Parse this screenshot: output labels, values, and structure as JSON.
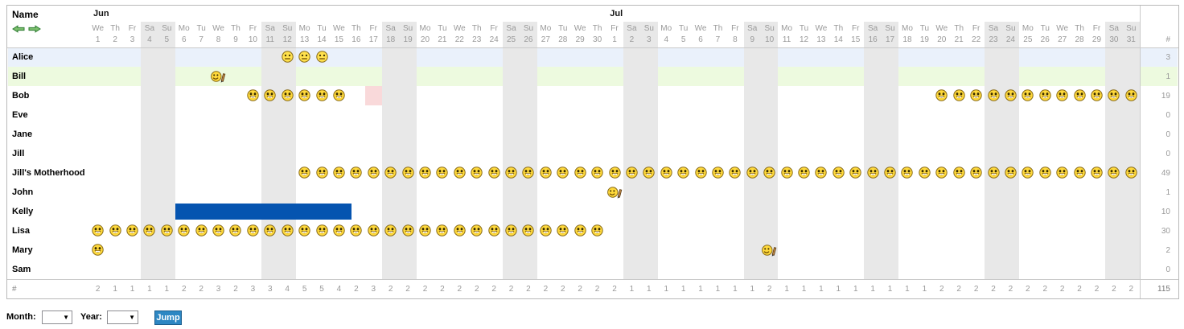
{
  "table": {
    "name_header": "Name",
    "count_header": "#",
    "footer_label": "#",
    "total": 115,
    "dow_cycle": [
      "Mo",
      "Tu",
      "We",
      "Th",
      "Fr",
      "Sa",
      "Su"
    ],
    "weekend_dows": [
      "Sa",
      "Su"
    ],
    "months": [
      {
        "label": "Jun",
        "days": 30,
        "first_dow": "We"
      },
      {
        "label": "Jul",
        "days": 31,
        "first_dow": "Fr"
      }
    ],
    "rows": [
      {
        "name": "Alice",
        "count": 3,
        "bg": "#eaf1fb",
        "marks": [
          {
            "icon": "smiley-neutral",
            "month": "Jun",
            "from": 12,
            "to": 14
          }
        ]
      },
      {
        "name": "Bill",
        "count": 1,
        "bg": "#edfadf",
        "marks": [
          {
            "icon": "smiley-pen",
            "month": "Jun",
            "from": 8,
            "to": 8
          }
        ]
      },
      {
        "name": "Bob",
        "count": 19,
        "bg": "",
        "marks": [
          {
            "icon": "smiley-grin",
            "month": "Jun",
            "from": 10,
            "to": 15
          },
          {
            "cell": "absence",
            "month": "Jun",
            "from": 17,
            "to": 17
          },
          {
            "icon": "smiley-grin",
            "month": "Jul",
            "from": 20,
            "to": 31
          }
        ]
      },
      {
        "name": "Eve",
        "count": 0,
        "bg": "",
        "marks": []
      },
      {
        "name": "Jane",
        "count": 0,
        "bg": "",
        "marks": []
      },
      {
        "name": "Jill",
        "count": 0,
        "bg": "",
        "marks": []
      },
      {
        "name": "Jill's Motherhood",
        "count": 49,
        "bg": "",
        "marks": [
          {
            "icon": "smiley-grin",
            "month": "Jun",
            "from": 13,
            "to": 30
          },
          {
            "icon": "smiley-grin",
            "month": "Jul",
            "from": 1,
            "to": 31
          }
        ]
      },
      {
        "name": "John",
        "count": 1,
        "bg": "",
        "marks": [
          {
            "icon": "smiley-pen",
            "month": "Jul",
            "from": 1,
            "to": 1
          }
        ]
      },
      {
        "name": "Kelly",
        "count": 10,
        "bg": "",
        "marks": [
          {
            "cell": "bar",
            "month": "Jun",
            "from": 6,
            "to": 15
          }
        ]
      },
      {
        "name": "Lisa",
        "count": 30,
        "bg": "",
        "marks": [
          {
            "icon": "smiley-grin",
            "month": "Jun",
            "from": 1,
            "to": 30
          }
        ]
      },
      {
        "name": "Mary",
        "count": 2,
        "bg": "",
        "marks": [
          {
            "icon": "smiley-grin",
            "month": "Jun",
            "from": 1,
            "to": 1
          },
          {
            "icon": "smiley-pen",
            "month": "Jul",
            "from": 10,
            "to": 10
          }
        ]
      },
      {
        "name": "Sam",
        "count": 0,
        "bg": "",
        "marks": []
      }
    ],
    "footer_counts": [
      2,
      1,
      1,
      1,
      1,
      2,
      2,
      3,
      2,
      3,
      3,
      4,
      5,
      5,
      4,
      2,
      3,
      2,
      2,
      2,
      2,
      2,
      2,
      2,
      2,
      2,
      2,
      2,
      2,
      2,
      2,
      1,
      1,
      1,
      1,
      1,
      1,
      1,
      1,
      2,
      1,
      1,
      1,
      1,
      1,
      1,
      1,
      1,
      1,
      2,
      2,
      2,
      2,
      2,
      2,
      2,
      2,
      2,
      2,
      2,
      2
    ]
  },
  "nav": {
    "prev_icon": "arrow-left",
    "next_icon": "arrow-right"
  },
  "controls": {
    "month_label": "Month:",
    "year_label": "Year:",
    "month_value": "",
    "year_value": "",
    "jump_label": "Jump"
  },
  "colors": {
    "weekend": "#e8e8e8",
    "row_highlight_blue": "#eaf1fb",
    "row_highlight_green": "#edfadf",
    "absence_pink": "#f9d9da",
    "booking_bar_blue": "#0554b0",
    "jump_button_blue": "#2d87c3",
    "arrow_green": "#7cbf6e",
    "smiley_yellow": "#ffd93b"
  }
}
